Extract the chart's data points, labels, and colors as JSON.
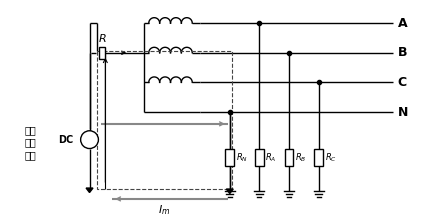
{
  "background_color": "#ffffff",
  "line_color": "#000000",
  "dashed_color": "#444444",
  "gray_color": "#888888",
  "fig_width": 4.23,
  "fig_height": 2.24,
  "dpi": 100,
  "left_text": [
    "绝缘",
    "监测",
    "装置"
  ],
  "line_labels": [
    "A",
    "B",
    "C",
    "N"
  ],
  "res_labels": [
    "$R_N$",
    "$R_A$",
    "$R_B$",
    "$R_C$"
  ],
  "R_label": "$R$",
  "DC_label": "DC",
  "Im_label": "$I_m$"
}
